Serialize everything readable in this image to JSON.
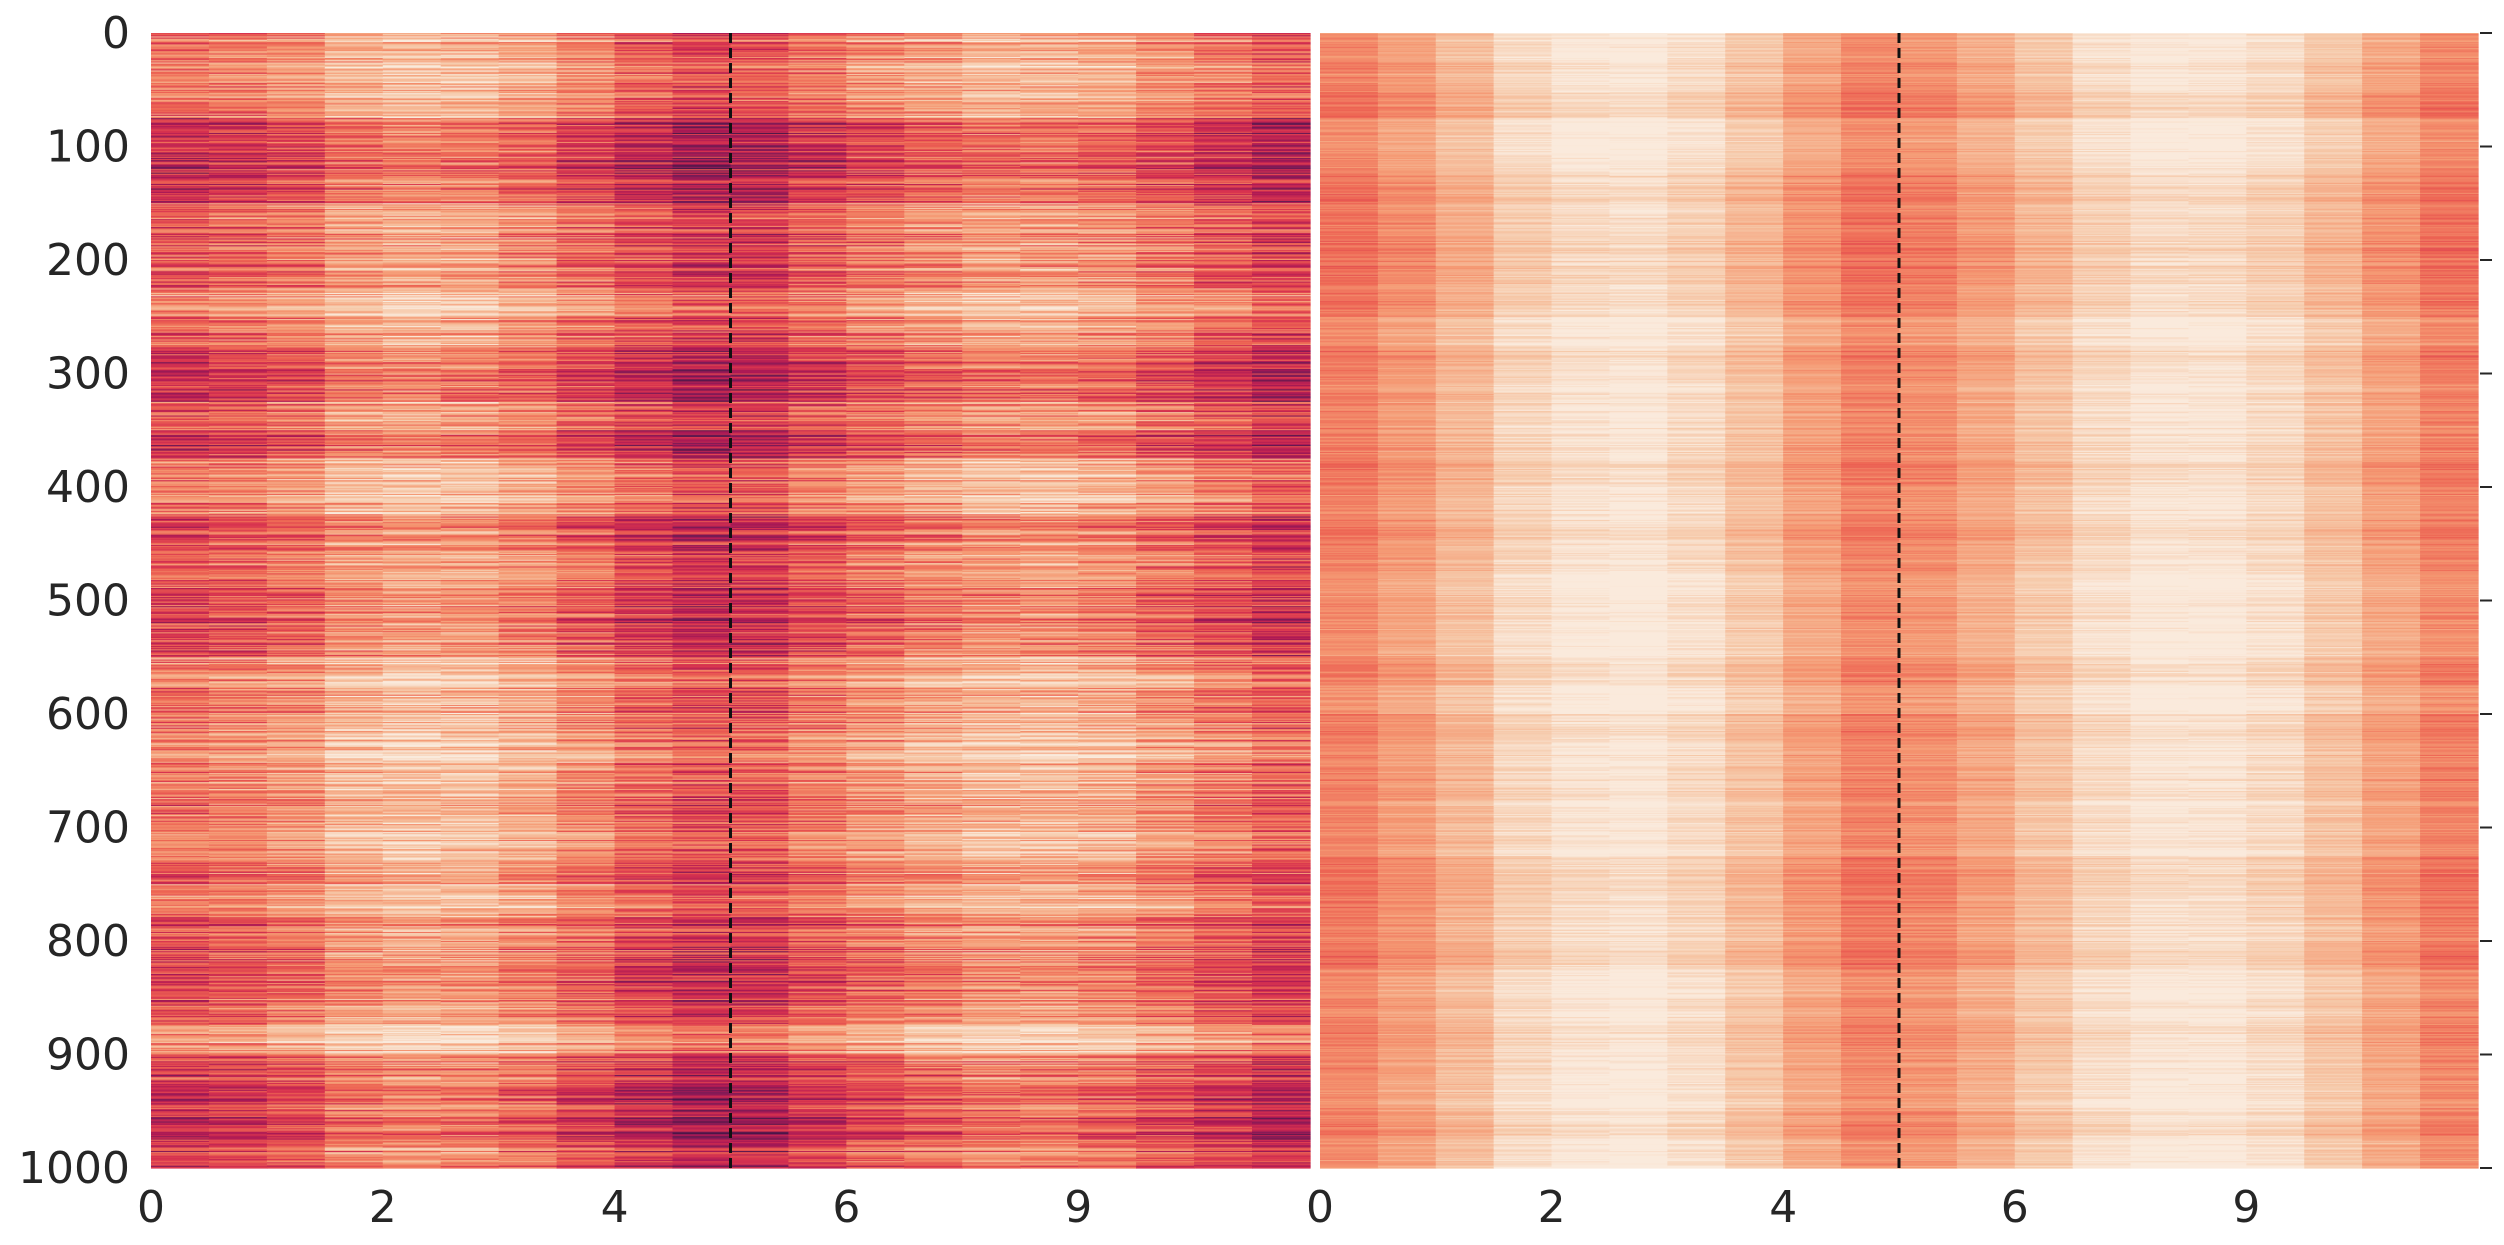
{
  "chart_data": [
    {
      "type": "heatmap",
      "title": "",
      "xlabel": "",
      "ylabel": "",
      "n_rows": 1000,
      "n_cols": 20,
      "colormap": "rocket_r",
      "colorbar": false,
      "grid": false,
      "ylim": [
        0,
        1000
      ],
      "y_ticks": [
        0,
        100,
        200,
        300,
        400,
        500,
        600,
        700,
        800,
        900,
        1000
      ],
      "y_tick_labels": [
        "0",
        "100",
        "200",
        "300",
        "400",
        "500",
        "600",
        "700",
        "800",
        "900",
        "1000"
      ],
      "x_tick_columns": [
        0,
        4,
        8,
        12,
        16
      ],
      "x_tick_labels": [
        "0",
        "2",
        "4",
        "6",
        "9"
      ],
      "divider_after_column": 10,
      "divider_style": "dashed",
      "column_mean_values": [
        0.52,
        0.48,
        0.42,
        0.3,
        0.26,
        0.28,
        0.35,
        0.45,
        0.55,
        0.62,
        0.6,
        0.5,
        0.42,
        0.36,
        0.3,
        0.3,
        0.34,
        0.42,
        0.5,
        0.58
      ],
      "row_variation": 0.34,
      "seed": 7
    },
    {
      "type": "heatmap",
      "title": "",
      "xlabel": "",
      "ylabel": "",
      "n_rows": 1000,
      "n_cols": 20,
      "colormap": "rocket_r",
      "colorbar": false,
      "grid": false,
      "ylim": [
        0,
        1000
      ],
      "y_ticks": [
        0,
        100,
        200,
        300,
        400,
        500,
        600,
        700,
        800,
        900,
        1000
      ],
      "y_tick_side": "right",
      "x_tick_columns": [
        0,
        4,
        8,
        12,
        16
      ],
      "x_tick_labels": [
        "0",
        "2",
        "4",
        "6",
        "9"
      ],
      "divider_after_column": 10,
      "divider_style": "dashed",
      "column_mean_values": [
        0.4,
        0.32,
        0.22,
        0.1,
        0.04,
        0.02,
        0.08,
        0.18,
        0.3,
        0.4,
        0.36,
        0.28,
        0.18,
        0.08,
        0.03,
        0.03,
        0.08,
        0.18,
        0.3,
        0.4
      ],
      "row_variation": 0.12,
      "seed": 19
    }
  ]
}
